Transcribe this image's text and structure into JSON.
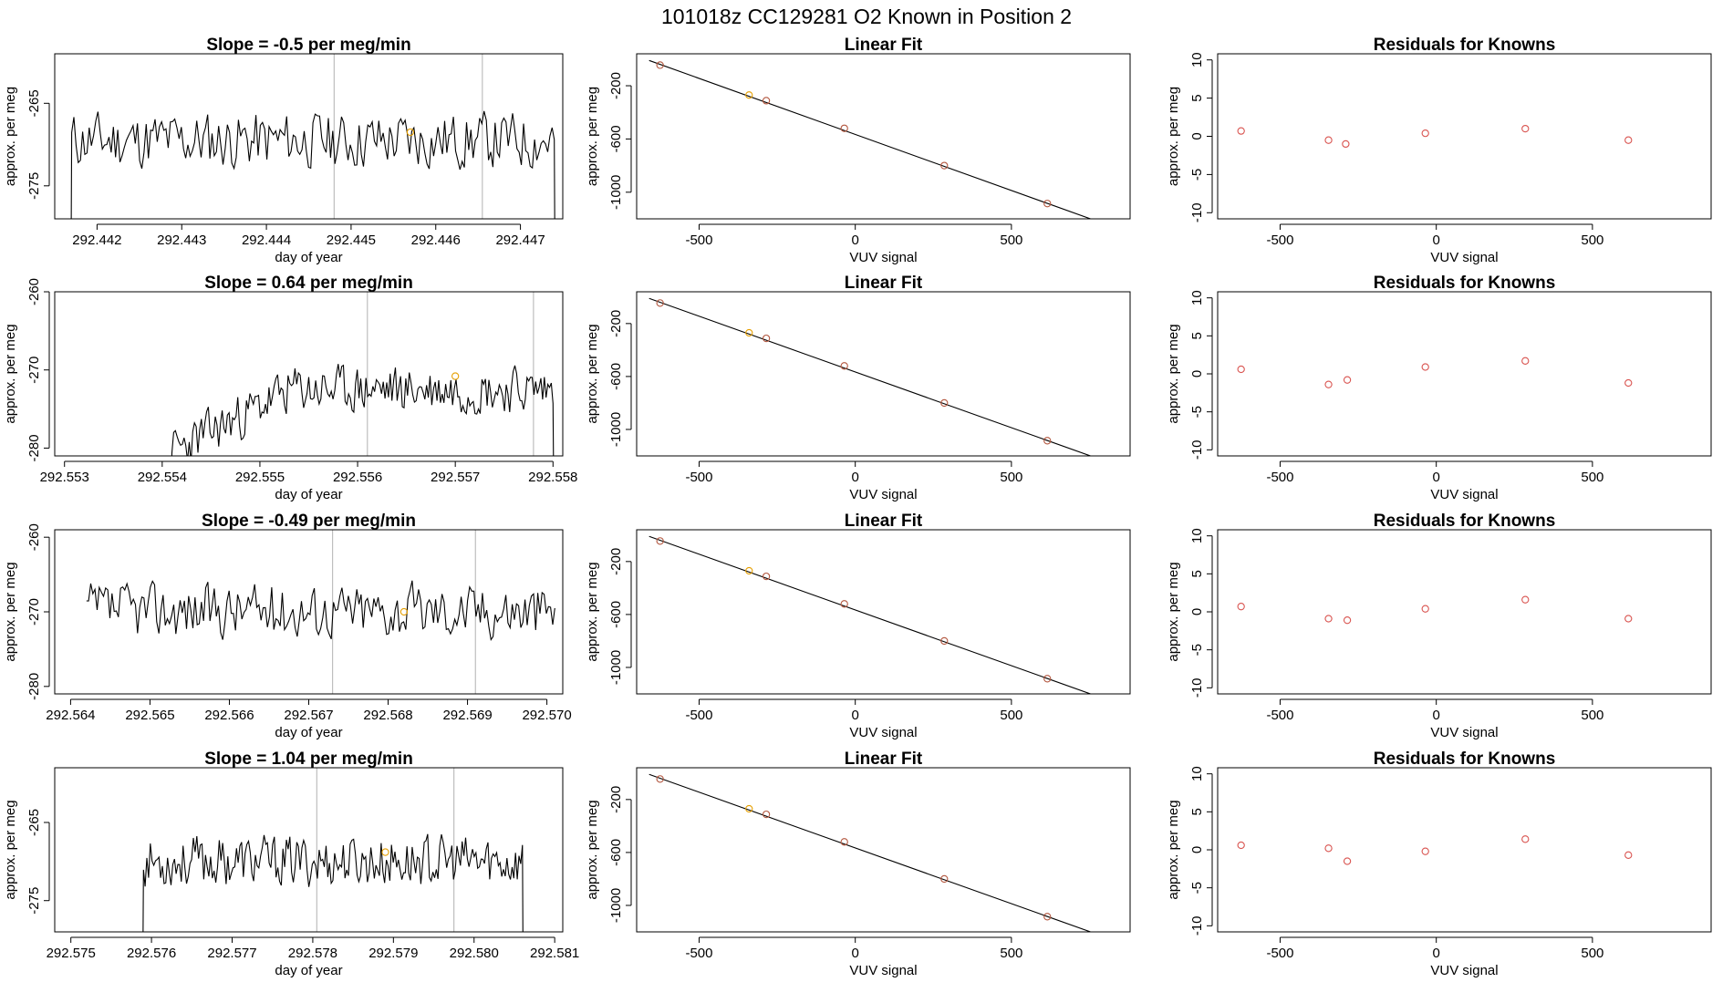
{
  "figure": {
    "title": "101018z      CC129281    O2 Known in Position  2"
  },
  "colors": {
    "axis": "#000000",
    "line": "#000000",
    "gridline": "#bebebe",
    "point_fit": "#cd5c5c",
    "point_highlight": "#e69f00",
    "point_resid": "#d9534f"
  },
  "chart_data": [
    {
      "type": "line",
      "row": 0,
      "col": 0,
      "title": "Slope =  -0.5  per meg/min",
      "xlabel": "day of year",
      "ylabel": "approx. per meg",
      "xlim": [
        292.4415,
        292.4475
      ],
      "ylim": [
        -279,
        -259
      ],
      "xticks": [
        292.442,
        292.443,
        292.444,
        292.445,
        292.446,
        292.447
      ],
      "xtick_labels": [
        "292.442",
        "292.443",
        "292.444",
        "292.445",
        "292.446",
        "292.447"
      ],
      "yticks": [
        -275,
        -265
      ],
      "ytick_labels": [
        "-275",
        "-265"
      ],
      "vlines": [
        292.4448,
        292.44655
      ],
      "series_x": [
        292.4417,
        292.4474
      ],
      "series_base": -269.5,
      "series_amp": 3.2,
      "series_seed": 11,
      "series_trend": 0.0,
      "tail_end": -282,
      "highlight": {
        "x": 292.4457,
        "y": -268.5
      }
    },
    {
      "type": "line",
      "row": 1,
      "col": 0,
      "title": "Slope =  0.64  per meg/min",
      "xlabel": "day of year",
      "ylabel": "approx. per meg",
      "xlim": [
        292.5529,
        292.5581
      ],
      "ylim": [
        -281,
        -260
      ],
      "xticks": [
        292.553,
        292.554,
        292.555,
        292.556,
        292.557,
        292.558
      ],
      "xtick_labels": [
        "292.553",
        "292.554",
        "292.555",
        "292.556",
        "292.557",
        "292.558"
      ],
      "yticks": [
        -280,
        -270,
        -260
      ],
      "ytick_labels": [
        "-280",
        "-270",
        "-260"
      ],
      "vlines": [
        292.5561,
        292.5578
      ],
      "series_x": [
        292.5541,
        292.558
      ],
      "series_base": -272.5,
      "series_amp": 2.8,
      "series_seed": 23,
      "series_trend": 6.0,
      "tail_end": -283,
      "highlight": {
        "x": 292.557,
        "y": -270.8
      }
    },
    {
      "type": "line",
      "row": 2,
      "col": 0,
      "title": "Slope =  -0.49  per meg/min",
      "xlabel": "day of year",
      "ylabel": "approx. per meg",
      "xlim": [
        292.5638,
        292.5702
      ],
      "ylim": [
        -281,
        -259
      ],
      "xticks": [
        292.564,
        292.565,
        292.566,
        292.567,
        292.568,
        292.569,
        292.57
      ],
      "xtick_labels": [
        "292.564",
        "292.565",
        "292.566",
        "292.567",
        "292.568",
        "292.569",
        "292.570"
      ],
      "yticks": [
        -280,
        -270,
        -260
      ],
      "ytick_labels": [
        "-280",
        "-270",
        "-260"
      ],
      "vlines": [
        292.5673,
        292.5691
      ],
      "series_x": [
        292.5642,
        292.5701
      ],
      "series_base": -269.8,
      "series_amp": 3.4,
      "series_seed": 37,
      "series_trend": 0.0,
      "tail_end": null,
      "highlight": {
        "x": 292.5682,
        "y": -270.0
      }
    },
    {
      "type": "line",
      "row": 3,
      "col": 0,
      "title": "Slope =  1.04  per meg/min",
      "xlabel": "day of year",
      "ylabel": "approx. per meg",
      "xlim": [
        292.5748,
        292.5811
      ],
      "ylim": [
        -279,
        -258
      ],
      "xticks": [
        292.575,
        292.576,
        292.577,
        292.578,
        292.579,
        292.58,
        292.581
      ],
      "xtick_labels": [
        "292.575",
        "292.576",
        "292.577",
        "292.578",
        "292.579",
        "292.580",
        "292.581"
      ],
      "yticks": [
        -275,
        -265
      ],
      "ytick_labels": [
        "-275",
        "-265"
      ],
      "vlines": [
        292.57805,
        292.57975
      ],
      "series_x": [
        292.5759,
        292.5806
      ],
      "series_base": -270.0,
      "series_amp": 3.0,
      "series_seed": 53,
      "series_trend": 0.0,
      "tail_end": -282,
      "highlight": {
        "x": 292.5789,
        "y": -268.8
      }
    },
    {
      "type": "scatter",
      "row": 0,
      "col": 1,
      "title": "Linear Fit",
      "xlabel": "VUV signal",
      "ylabel": "approx. per meg",
      "xlim": [
        -700,
        880
      ],
      "ylim": [
        -1200,
        40
      ],
      "xticks": [
        -500,
        0,
        500
      ],
      "xtick_labels": [
        "-500",
        "0",
        "500"
      ],
      "yticks": [
        -1000,
        -600,
        -200
      ],
      "ytick_labels": [
        "-1000",
        "-600",
        "-200"
      ],
      "points": [
        {
          "x": -625,
          "y": -45
        },
        {
          "x": -340,
          "y": -270
        },
        {
          "x": -285,
          "y": -312
        },
        {
          "x": -35,
          "y": -520
        },
        {
          "x": 285,
          "y": -800
        },
        {
          "x": 615,
          "y": -1085
        }
      ],
      "highlight_index": 1,
      "fit_line": {
        "x0": -660,
        "y0": -10,
        "x1": 860,
        "y1": -1290
      }
    },
    {
      "type": "scatter",
      "row": 1,
      "col": 1,
      "title": "Linear Fit",
      "xlabel": "VUV signal",
      "ylabel": "approx. per meg",
      "xlim": [
        -700,
        880
      ],
      "ylim": [
        -1200,
        40
      ],
      "xticks": [
        -500,
        0,
        500
      ],
      "xtick_labels": [
        "-500",
        "0",
        "500"
      ],
      "yticks": [
        -1000,
        -600,
        -200
      ],
      "ytick_labels": [
        "-1000",
        "-600",
        "-200"
      ],
      "points": [
        {
          "x": -625,
          "y": -45
        },
        {
          "x": -340,
          "y": -270
        },
        {
          "x": -285,
          "y": -312
        },
        {
          "x": -35,
          "y": -520
        },
        {
          "x": 285,
          "y": -800
        },
        {
          "x": 615,
          "y": -1085
        }
      ],
      "highlight_index": 1,
      "fit_line": {
        "x0": -660,
        "y0": -10,
        "x1": 860,
        "y1": -1290
      }
    },
    {
      "type": "scatter",
      "row": 2,
      "col": 1,
      "title": "Linear Fit",
      "xlabel": "VUV signal",
      "ylabel": "approx. per meg",
      "xlim": [
        -700,
        880
      ],
      "ylim": [
        -1200,
        40
      ],
      "xticks": [
        -500,
        0,
        500
      ],
      "xtick_labels": [
        "-500",
        "0",
        "500"
      ],
      "yticks": [
        -1000,
        -600,
        -200
      ],
      "ytick_labels": [
        "-1000",
        "-600",
        "-200"
      ],
      "points": [
        {
          "x": -625,
          "y": -45
        },
        {
          "x": -340,
          "y": -270
        },
        {
          "x": -285,
          "y": -312
        },
        {
          "x": -35,
          "y": -520
        },
        {
          "x": 285,
          "y": -800
        },
        {
          "x": 615,
          "y": -1085
        }
      ],
      "highlight_index": 1,
      "fit_line": {
        "x0": -660,
        "y0": -10,
        "x1": 860,
        "y1": -1290
      }
    },
    {
      "type": "scatter",
      "row": 3,
      "col": 1,
      "title": "Linear Fit",
      "xlabel": "VUV signal",
      "ylabel": "approx. per meg",
      "xlim": [
        -700,
        880
      ],
      "ylim": [
        -1200,
        40
      ],
      "xticks": [
        -500,
        0,
        500
      ],
      "xtick_labels": [
        "-500",
        "0",
        "500"
      ],
      "yticks": [
        -1000,
        -600,
        -200
      ],
      "ytick_labels": [
        "-1000",
        "-600",
        "-200"
      ],
      "points": [
        {
          "x": -625,
          "y": -45
        },
        {
          "x": -340,
          "y": -270
        },
        {
          "x": -285,
          "y": -312
        },
        {
          "x": -35,
          "y": -520
        },
        {
          "x": 285,
          "y": -800
        },
        {
          "x": 615,
          "y": -1085
        }
      ],
      "highlight_index": 1,
      "fit_line": {
        "x0": -660,
        "y0": -10,
        "x1": 860,
        "y1": -1290
      }
    },
    {
      "type": "scatter",
      "row": 0,
      "col": 2,
      "title": "Residuals for Knowns",
      "xlabel": "VUV signal",
      "ylabel": "approx. per meg",
      "xlim": [
        -700,
        880
      ],
      "ylim": [
        -10.8,
        10.8
      ],
      "xticks": [
        -500,
        0,
        500
      ],
      "xtick_labels": [
        "-500",
        "0",
        "500"
      ],
      "yticks": [
        -10,
        -5,
        0,
        5,
        10
      ],
      "ytick_labels": [
        "-10",
        "-5",
        "0",
        "5",
        "10"
      ],
      "points": [
        {
          "x": -625,
          "y": 0.7
        },
        {
          "x": -345,
          "y": -0.5
        },
        {
          "x": -290,
          "y": -1.0
        },
        {
          "x": -35,
          "y": 0.4
        },
        {
          "x": 285,
          "y": 1.0
        },
        {
          "x": 615,
          "y": -0.5
        }
      ],
      "highlight_index": -1,
      "fit_line": null
    },
    {
      "type": "scatter",
      "row": 1,
      "col": 2,
      "title": "Residuals for Knowns",
      "xlabel": "VUV signal",
      "ylabel": "approx. per meg",
      "xlim": [
        -700,
        880
      ],
      "ylim": [
        -10.8,
        10.8
      ],
      "xticks": [
        -500,
        0,
        500
      ],
      "xtick_labels": [
        "-500",
        "0",
        "500"
      ],
      "yticks": [
        -10,
        -5,
        0,
        5,
        10
      ],
      "ytick_labels": [
        "-10",
        "-5",
        "0",
        "5",
        "10"
      ],
      "points": [
        {
          "x": -625,
          "y": 0.6
        },
        {
          "x": -345,
          "y": -1.4
        },
        {
          "x": -285,
          "y": -0.8
        },
        {
          "x": -35,
          "y": 0.9
        },
        {
          "x": 285,
          "y": 1.7
        },
        {
          "x": 615,
          "y": -1.2
        }
      ],
      "highlight_index": -1,
      "fit_line": null
    },
    {
      "type": "scatter",
      "row": 2,
      "col": 2,
      "title": "Residuals for Knowns",
      "xlabel": "VUV signal",
      "ylabel": "approx. per meg",
      "xlim": [
        -700,
        880
      ],
      "ylim": [
        -10.8,
        10.8
      ],
      "xticks": [
        -500,
        0,
        500
      ],
      "xtick_labels": [
        "-500",
        "0",
        "500"
      ],
      "yticks": [
        -10,
        -5,
        0,
        5,
        10
      ],
      "ytick_labels": [
        "-10",
        "-5",
        "0",
        "5",
        "10"
      ],
      "points": [
        {
          "x": -625,
          "y": 0.7
        },
        {
          "x": -345,
          "y": -0.9
        },
        {
          "x": -285,
          "y": -1.1
        },
        {
          "x": -35,
          "y": 0.4
        },
        {
          "x": 285,
          "y": 1.6
        },
        {
          "x": 615,
          "y": -0.9
        }
      ],
      "highlight_index": -1,
      "fit_line": null
    },
    {
      "type": "scatter",
      "row": 3,
      "col": 2,
      "title": "Residuals for Knowns",
      "xlabel": "VUV signal",
      "ylabel": "approx. per meg",
      "xlim": [
        -700,
        880
      ],
      "ylim": [
        -10.8,
        10.8
      ],
      "xticks": [
        -500,
        0,
        500
      ],
      "xtick_labels": [
        "-500",
        "0",
        "500"
      ],
      "yticks": [
        -10,
        -5,
        0,
        5,
        10
      ],
      "ytick_labels": [
        "-10",
        "-5",
        "0",
        "5",
        "10"
      ],
      "points": [
        {
          "x": -625,
          "y": 0.6
        },
        {
          "x": -345,
          "y": 0.2
        },
        {
          "x": -285,
          "y": -1.5
        },
        {
          "x": -35,
          "y": -0.2
        },
        {
          "x": 285,
          "y": 1.4
        },
        {
          "x": 615,
          "y": -0.7
        }
      ],
      "highlight_index": -1,
      "fit_line": null
    }
  ]
}
